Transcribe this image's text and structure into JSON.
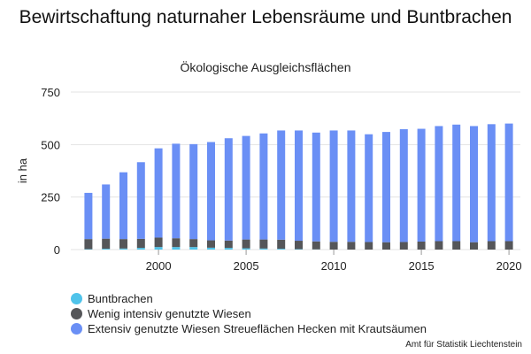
{
  "chart_data": {
    "type": "bar",
    "stacked": true,
    "title": "Bewirtschaftung naturnaher Lebensräume und Buntbrachen",
    "subtitle": "Ökologische Ausgleichsflächen",
    "xlabel": "",
    "ylabel": "in ha",
    "ylim": [
      0,
      750
    ],
    "yticks": [
      0,
      250,
      500,
      750
    ],
    "xticks": [
      2000,
      2005,
      2010,
      2015,
      2020
    ],
    "grid": "horizontal",
    "legend_position": "bottom-left",
    "x": [
      1996,
      1997,
      1998,
      1999,
      2000,
      2001,
      2002,
      2003,
      2004,
      2005,
      2006,
      2007,
      2008,
      2009,
      2010,
      2011,
      2012,
      2013,
      2014,
      2015,
      2016,
      2017,
      2018,
      2019,
      2020
    ],
    "series": [
      {
        "name": "Buntbrachen",
        "color": "#4fc3ea",
        "values": [
          2,
          4,
          5,
          8,
          12,
          12,
          12,
          9,
          8,
          6,
          5,
          4,
          2,
          1,
          0,
          0,
          0,
          0,
          0,
          0,
          0,
          0,
          0,
          0,
          0
        ]
      },
      {
        "name": "Wenig intensiv genutzte Wiesen",
        "color": "#555659",
        "values": [
          48,
          48,
          45,
          43,
          45,
          42,
          38,
          35,
          35,
          42,
          43,
          43,
          40,
          38,
          37,
          37,
          36,
          35,
          36,
          38,
          40,
          40,
          35,
          40,
          40
        ]
      },
      {
        "name": "Extensiv genutzte Wiesen Streueflächen Hecken mit Krautsäumen",
        "color": "#6a8ff5",
        "values": [
          220,
          258,
          318,
          365,
          425,
          450,
          452,
          468,
          487,
          493,
          505,
          520,
          525,
          518,
          530,
          530,
          513,
          525,
          537,
          537,
          548,
          555,
          553,
          557,
          560
        ]
      }
    ]
  },
  "source": "Amt für Statistik Liechtenstein"
}
